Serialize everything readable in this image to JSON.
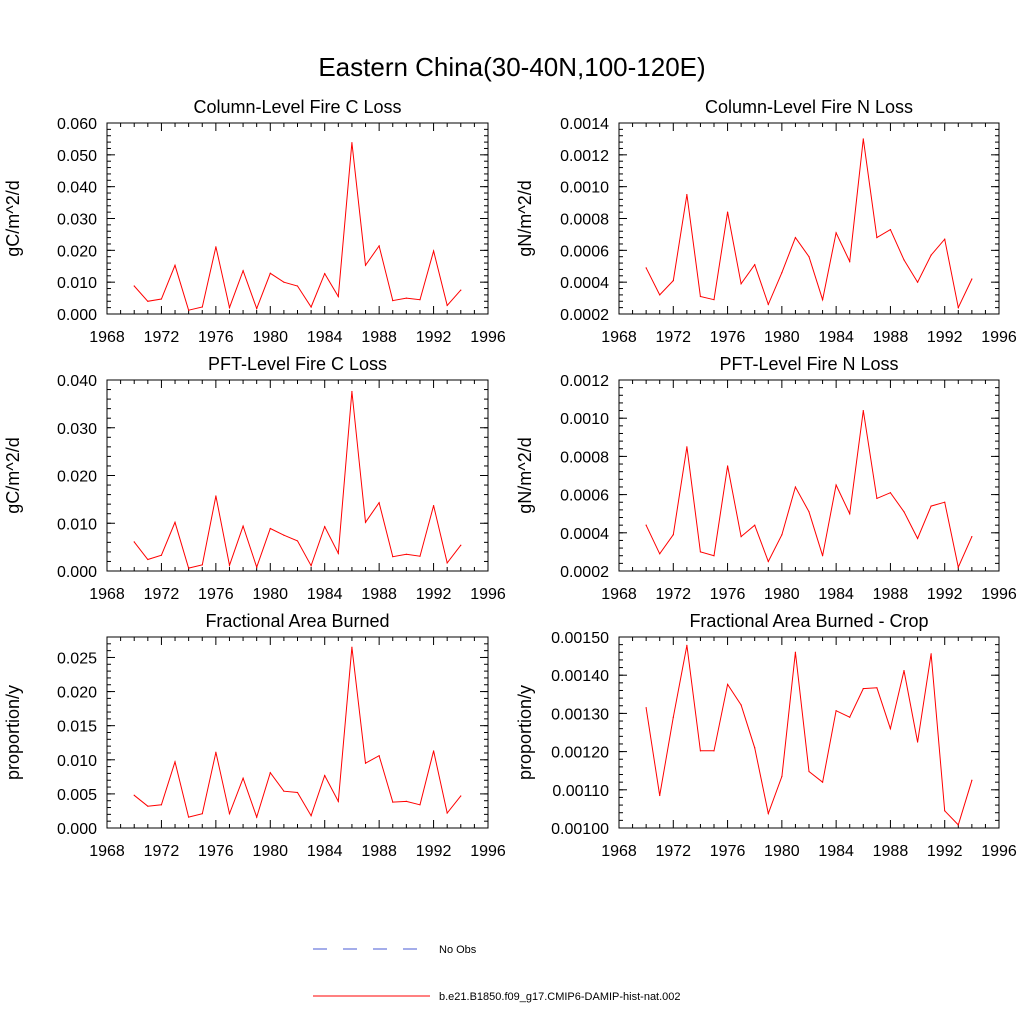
{
  "title": "Eastern China(30-40N,100-120E)",
  "colors": {
    "model": "#ff0000",
    "obs": "#4a5bd6",
    "axis": "#000000"
  },
  "legend": {
    "obs_label": "No Obs",
    "model_label": "b.e21.B1850.f09_g17.CMIP6-DAMIP-hist-nat.002"
  },
  "chart_data": [
    {
      "type": "line",
      "title": "Column-Level Fire C Loss",
      "ylabel": "gC/m^2/d",
      "xlim": [
        1968,
        1996
      ],
      "xticks": [
        1968,
        1972,
        1976,
        1980,
        1984,
        1988,
        1992,
        1996
      ],
      "ylim": [
        0.0,
        0.06
      ],
      "yticks": [
        "0.000",
        "0.010",
        "0.020",
        "0.030",
        "0.040",
        "0.050",
        "0.060"
      ],
      "x": [
        1970,
        1971,
        1972,
        1973,
        1974,
        1975,
        1976,
        1977,
        1978,
        1979,
        1980,
        1981,
        1982,
        1983,
        1984,
        1985,
        1986,
        1987,
        1988,
        1989,
        1990,
        1991,
        1992,
        1993,
        1994
      ],
      "series": [
        {
          "values": [
            0.0088,
            0.004,
            0.0047,
            0.0153,
            0.0012,
            0.0022,
            0.0211,
            0.002,
            0.0136,
            0.0017,
            0.0128,
            0.01,
            0.0088,
            0.0022,
            0.0127,
            0.0055,
            0.0538,
            0.0153,
            0.0214,
            0.0042,
            0.005,
            0.0045,
            0.0198,
            0.0027,
            0.0075
          ]
        }
      ]
    },
    {
      "type": "line",
      "title": "Column-Level Fire N Loss",
      "ylabel": "gN/m^2/d",
      "xlim": [
        1968,
        1996
      ],
      "xticks": [
        1968,
        1972,
        1976,
        1980,
        1984,
        1988,
        1992,
        1996
      ],
      "ylim": [
        0.0002,
        0.0014
      ],
      "yticks": [
        "0.0002",
        "0.0004",
        "0.0006",
        "0.0008",
        "0.0010",
        "0.0012",
        "0.0014"
      ],
      "x": [
        1970,
        1971,
        1972,
        1973,
        1974,
        1975,
        1976,
        1977,
        1978,
        1979,
        1980,
        1981,
        1982,
        1983,
        1984,
        1985,
        1986,
        1987,
        1988,
        1989,
        1990,
        1991,
        1992,
        1993,
        1994
      ],
      "series": [
        {
          "values": [
            0.00049,
            0.00032,
            0.00041,
            0.00095,
            0.00031,
            0.00029,
            0.00084,
            0.00039,
            0.00051,
            0.00026,
            0.00046,
            0.00068,
            0.00056,
            0.00029,
            0.00071,
            0.00053,
            0.0013,
            0.00068,
            0.00073,
            0.00054,
            0.0004,
            0.00057,
            0.00067,
            0.00024,
            0.00042
          ]
        }
      ]
    },
    {
      "type": "line",
      "title": "PFT-Level Fire C Loss",
      "ylabel": "gC/m^2/d",
      "xlim": [
        1968,
        1996
      ],
      "xticks": [
        1968,
        1972,
        1976,
        1980,
        1984,
        1988,
        1992,
        1996
      ],
      "ylim": [
        0.0,
        0.04
      ],
      "yticks": [
        "0.000",
        "0.010",
        "0.020",
        "0.030",
        "0.040"
      ],
      "x": [
        1970,
        1971,
        1972,
        1973,
        1974,
        1975,
        1976,
        1977,
        1978,
        1979,
        1980,
        1981,
        1982,
        1983,
        1984,
        1985,
        1986,
        1987,
        1988,
        1989,
        1990,
        1991,
        1992,
        1993,
        1994
      ],
      "series": [
        {
          "values": [
            0.0061,
            0.0024,
            0.0033,
            0.0102,
            0.0006,
            0.0013,
            0.0157,
            0.0012,
            0.0094,
            0.0008,
            0.0089,
            0.0075,
            0.0063,
            0.0011,
            0.0093,
            0.0037,
            0.0376,
            0.0102,
            0.0143,
            0.003,
            0.0035,
            0.0031,
            0.0137,
            0.0017,
            0.0054
          ]
        }
      ]
    },
    {
      "type": "line",
      "title": "PFT-Level Fire N Loss",
      "ylabel": "gN/m^2/d",
      "xlim": [
        1968,
        1996
      ],
      "xticks": [
        1968,
        1972,
        1976,
        1980,
        1984,
        1988,
        1992,
        1996
      ],
      "ylim": [
        0.0002,
        0.0012
      ],
      "yticks": [
        "0.0002",
        "0.0004",
        "0.0006",
        "0.0008",
        "0.0010",
        "0.0012"
      ],
      "x": [
        1970,
        1971,
        1972,
        1973,
        1974,
        1975,
        1976,
        1977,
        1978,
        1979,
        1980,
        1981,
        1982,
        1983,
        1984,
        1985,
        1986,
        1987,
        1988,
        1989,
        1990,
        1991,
        1992,
        1993,
        1994
      ],
      "series": [
        {
          "values": [
            0.00044,
            0.00029,
            0.00039,
            0.00085,
            0.0003,
            0.00028,
            0.00075,
            0.00038,
            0.00044,
            0.00025,
            0.00039,
            0.00064,
            0.00051,
            0.00028,
            0.00065,
            0.0005,
            0.00104,
            0.00058,
            0.00061,
            0.00051,
            0.00037,
            0.00054,
            0.00056,
            0.00022,
            0.00038
          ]
        }
      ]
    },
    {
      "type": "line",
      "title": "Fractional Area Burned",
      "ylabel": "proportion/y",
      "xlim": [
        1968,
        1996
      ],
      "xticks": [
        1968,
        1972,
        1976,
        1980,
        1984,
        1988,
        1992,
        1996
      ],
      "ylim": [
        0.0,
        0.028
      ],
      "yticks": [
        "0.000",
        "0.005",
        "0.010",
        "0.015",
        "0.020",
        "0.025"
      ],
      "ytick_values": [
        0.0,
        0.005,
        0.01,
        0.015,
        0.02,
        0.025
      ],
      "x": [
        1970,
        1971,
        1972,
        1973,
        1974,
        1975,
        1976,
        1977,
        1978,
        1979,
        1980,
        1981,
        1982,
        1983,
        1984,
        1985,
        1986,
        1987,
        1988,
        1989,
        1990,
        1991,
        1992,
        1993,
        1994
      ],
      "series": [
        {
          "values": [
            0.0048,
            0.0032,
            0.0034,
            0.0097,
            0.0016,
            0.0021,
            0.0111,
            0.0021,
            0.0073,
            0.0016,
            0.0081,
            0.0054,
            0.0052,
            0.0018,
            0.0077,
            0.0039,
            0.0265,
            0.0095,
            0.0106,
            0.0038,
            0.0039,
            0.0034,
            0.0113,
            0.0022,
            0.0047
          ]
        }
      ]
    },
    {
      "type": "line",
      "title": "Fractional Area Burned - Crop",
      "ylabel": "proportion/y",
      "xlim": [
        1968,
        1996
      ],
      "xticks": [
        1968,
        1972,
        1976,
        1980,
        1984,
        1988,
        1992,
        1996
      ],
      "ylim": [
        0.001,
        0.0015
      ],
      "yticks": [
        "0.00100",
        "0.00110",
        "0.00120",
        "0.00130",
        "0.00140",
        "0.00150"
      ],
      "x": [
        1970,
        1971,
        1972,
        1973,
        1974,
        1975,
        1976,
        1977,
        1978,
        1979,
        1980,
        1981,
        1982,
        1983,
        1984,
        1985,
        1986,
        1987,
        1988,
        1989,
        1990,
        1991,
        1992,
        1993,
        1994
      ],
      "series": [
        {
          "values": [
            0.001315,
            0.001085,
            0.00129,
            0.001478,
            0.001202,
            0.001202,
            0.001376,
            0.001322,
            0.00121,
            0.001038,
            0.001135,
            0.00146,
            0.001148,
            0.00112,
            0.001307,
            0.00129,
            0.001365,
            0.001367,
            0.00126,
            0.001412,
            0.001225,
            0.001456,
            0.001045,
            0.001008,
            0.001125
          ]
        }
      ]
    }
  ]
}
